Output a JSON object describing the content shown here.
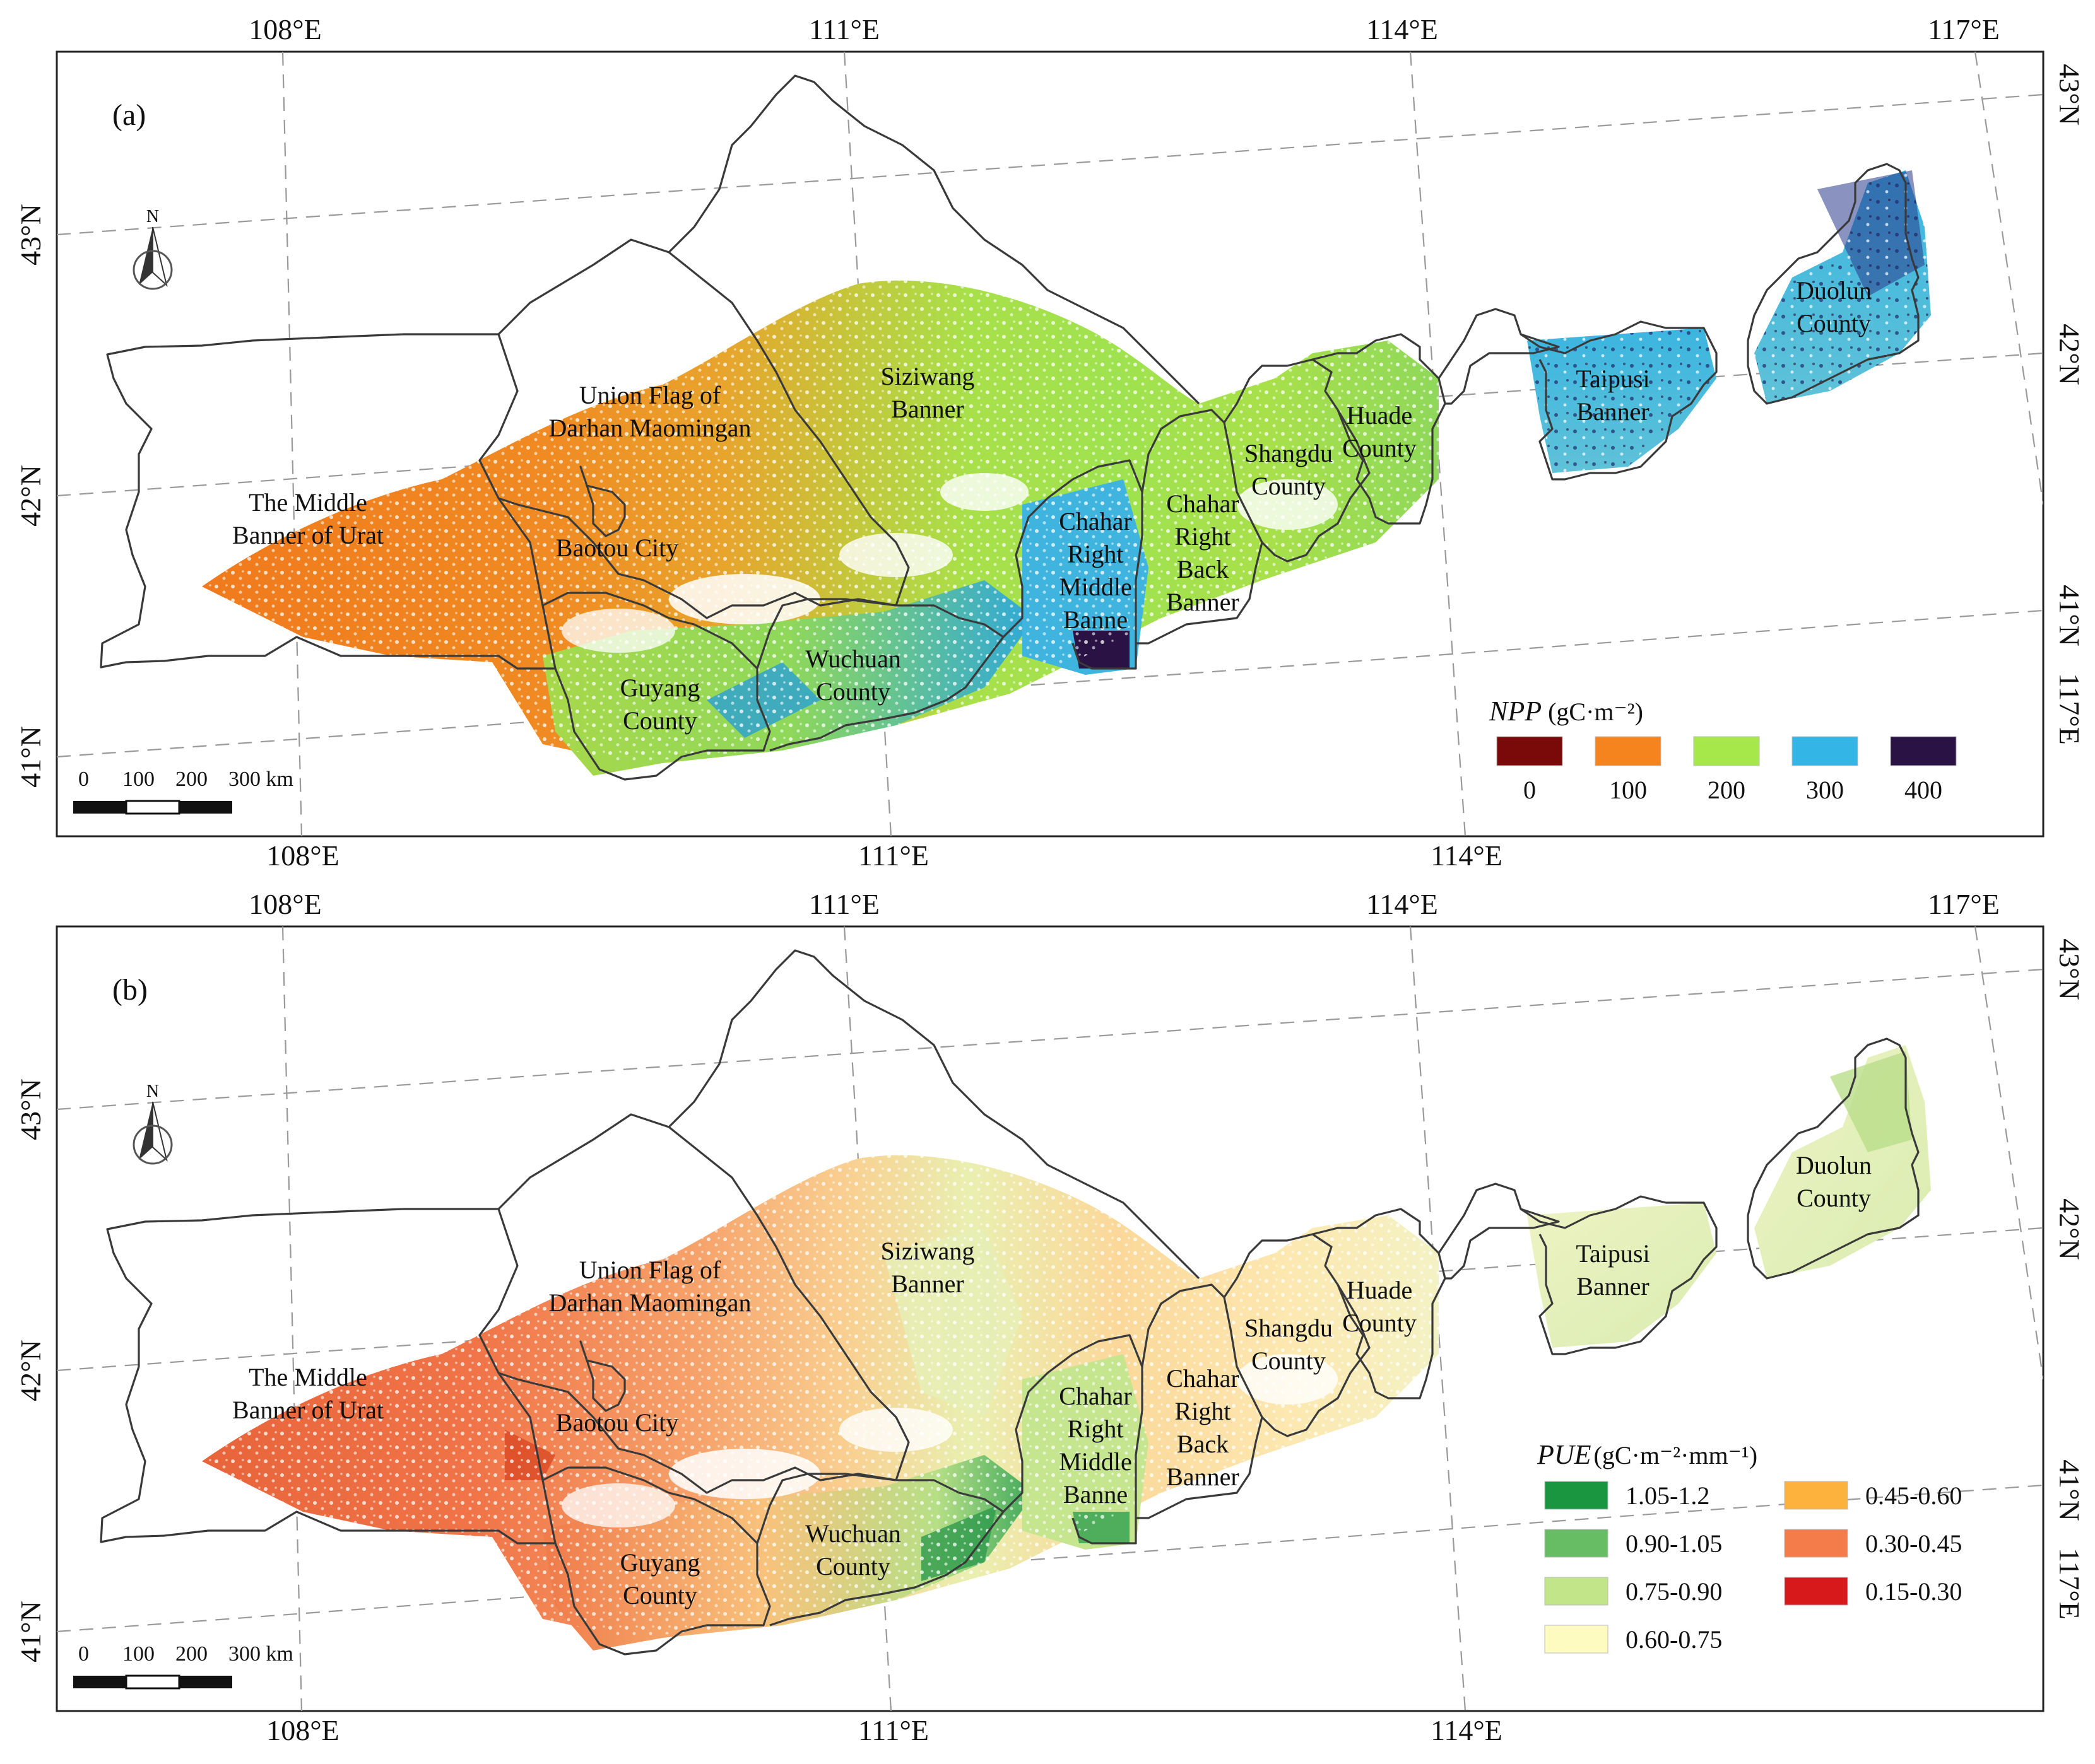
{
  "panels": [
    {
      "id": "a",
      "label": "(a)",
      "top_lon_labels": [
        "108°E",
        "111°E",
        "114°E",
        "117°E"
      ],
      "bottom_lon_labels": [
        "108°E",
        "111°E",
        "114°E"
      ],
      "left_lat_labels": [
        "43°N",
        "42°N",
        "41°N"
      ],
      "right_lat_labels": [
        "43°N",
        "42°N",
        "41°N",
        "117°E"
      ],
      "regions": {
        "urat": [
          "The Middle",
          "Banner of Urat"
        ],
        "darhan": [
          "Union Flag of",
          "Darhan Maomingan"
        ],
        "baotou": [
          "Baotou City"
        ],
        "siziwang": [
          "Siziwang",
          "Banner"
        ],
        "guyang": [
          "Guyang",
          "County"
        ],
        "wuchuan": [
          "Wuchuan",
          "County"
        ],
        "chahar_mid": [
          "Chahar",
          "Right",
          "Middle",
          "Banne"
        ],
        "chahar_back": [
          "Chahar",
          "Right",
          "Back",
          "Banner"
        ],
        "shangdu": [
          "Shangdu",
          "County"
        ],
        "huade": [
          "Huade",
          "County"
        ],
        "taipusi": [
          "Taipusi",
          "Banner"
        ],
        "duolun": [
          "Duolun",
          "County"
        ]
      },
      "legend": {
        "title": "NPP",
        "unit": "(gC·m⁻²)",
        "items": [
          {
            "label": "0",
            "color": "#7a0a0a"
          },
          {
            "label": "100",
            "color": "#f5841f"
          },
          {
            "label": "200",
            "color": "#a6e84a"
          },
          {
            "label": "300",
            "color": "#33b6e6"
          },
          {
            "label": "400",
            "color": "#2a1245"
          }
        ]
      },
      "scale_bar": {
        "labels": [
          "0",
          "100",
          "200",
          "300 km"
        ]
      },
      "north_label": "N"
    },
    {
      "id": "b",
      "label": "(b)",
      "top_lon_labels": [
        "108°E",
        "111°E",
        "114°E",
        "117°E"
      ],
      "bottom_lon_labels": [
        "108°E",
        "111°E",
        "114°E"
      ],
      "left_lat_labels": [
        "43°N",
        "42°N",
        "41°N"
      ],
      "right_lat_labels": [
        "43°N",
        "42°N",
        "41°N",
        "117°E"
      ],
      "regions": {
        "urat": [
          "The Middle",
          "Banner of Urat"
        ],
        "darhan": [
          "Union Flag of",
          "Darhan Maomingan"
        ],
        "baotou": [
          "Baotou City"
        ],
        "siziwang": [
          "Siziwang",
          "Banner"
        ],
        "guyang": [
          "Guyang",
          "County"
        ],
        "wuchuan": [
          "Wuchuan",
          "County"
        ],
        "chahar_mid": [
          "Chahar",
          "Right",
          "Middle",
          "Banne"
        ],
        "chahar_back": [
          "Chahar",
          "Right",
          "Back",
          "Banner"
        ],
        "shangdu": [
          "Shangdu",
          "County"
        ],
        "huade": [
          "Huade",
          "County"
        ],
        "taipusi": [
          "Taipusi",
          "Banner"
        ],
        "duolun": [
          "Duolun",
          "County"
        ]
      },
      "legend": {
        "title": "PUE",
        "unit": "(gC·m⁻²·mm⁻¹)",
        "items": [
          {
            "label": "1.05-1.2",
            "color": "#1a9641"
          },
          {
            "label": "0.90-1.05",
            "color": "#66bd63"
          },
          {
            "label": "0.75-0.90",
            "color": "#c2e58a"
          },
          {
            "label": "0.60-0.75",
            "color": "#fdfbbf"
          },
          {
            "label": "0.45-0.60",
            "color": "#fdb23e"
          },
          {
            "label": "0.30-0.45",
            "color": "#f47c4a"
          },
          {
            "label": "0.15-0.30",
            "color": "#d7191c"
          }
        ]
      },
      "scale_bar": {
        "labels": [
          "0",
          "100",
          "200",
          "300 km"
        ]
      },
      "north_label": "N"
    }
  ]
}
